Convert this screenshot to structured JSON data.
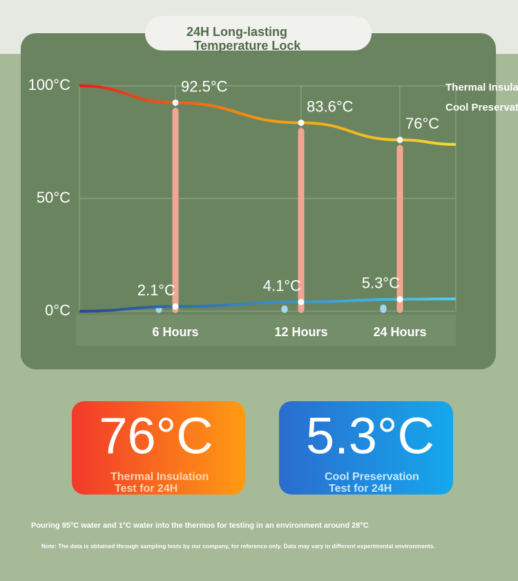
{
  "header": {
    "title": [
      "24H Long-lasting",
      "Temperature Lock"
    ]
  },
  "chart_data": {
    "type": "line",
    "categories": [
      null,
      "6 Hours",
      "12 Hours",
      "24 Hours",
      null
    ],
    "series": [
      {
        "name": "Thermal Insulation",
        "color": [
          "#e61e1a",
          "#f39a10",
          "#f3d93a"
        ],
        "bar_color": "#f4a592",
        "values": [
          100,
          92.5,
          83.6,
          76,
          74
        ],
        "value_labels": [
          null,
          "92.5°C",
          "83.6°C",
          "76°C",
          null
        ]
      },
      {
        "name": "Cool Preservation",
        "color": [
          "#234a93",
          "#4fcdf2"
        ],
        "bar_color": "#a2d9f0",
        "values": [
          0,
          2.1,
          4.1,
          5.3,
          5.5
        ],
        "value_labels": [
          null,
          "2.1°C",
          "4.1°C",
          "5.3°C",
          null
        ]
      }
    ],
    "ylim": [
      0,
      100
    ],
    "yticks": [
      {
        "value": 0,
        "label": "0°C"
      },
      {
        "value": 50,
        "label": "50°C"
      },
      {
        "value": 100,
        "label": "100°C"
      }
    ],
    "grid": true,
    "legend": "top-right"
  },
  "cards": [
    {
      "value": "76°C",
      "label": [
        "Thermal Insulation",
        "Test for 24H"
      ]
    },
    {
      "value": "5.3°C",
      "label": [
        "Cool Preservation",
        "Test for 24H"
      ]
    }
  ],
  "notes": [
    "Pouring 95°C water and 1°C water into the thermos for testing in an environment around 28°C",
    "Note: The data is obtained through sampling tests by our company, for reference only. Data may vary in different experimental environments."
  ]
}
